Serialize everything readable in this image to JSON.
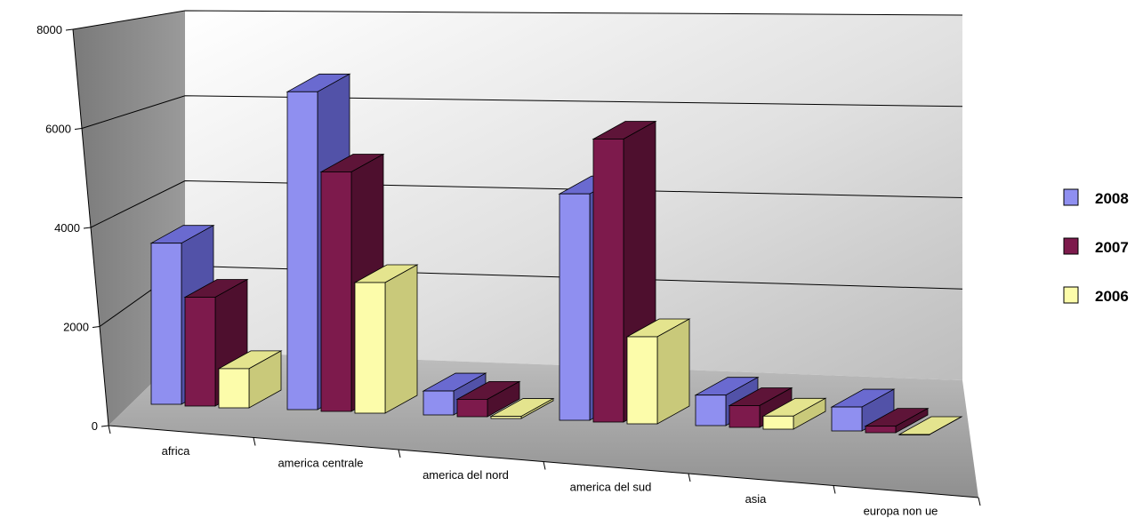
{
  "chart_data": {
    "type": "bar",
    "title": "",
    "xlabel": "",
    "ylabel": "",
    "ylim": [
      0,
      8000
    ],
    "yticks": [
      0,
      2000,
      4000,
      6000,
      8000
    ],
    "categories": [
      "africa",
      "america centrale",
      "america del nord",
      "america del sud",
      "asia",
      "europa non ue"
    ],
    "series": [
      {
        "name": "2008",
        "values": [
          3700,
          7300,
          550,
          5200,
          700,
          550
        ]
      },
      {
        "name": "2007",
        "values": [
          2500,
          5500,
          400,
          6500,
          500,
          150
        ]
      },
      {
        "name": "2006",
        "values": [
          900,
          3000,
          50,
          2000,
          300,
          0
        ]
      }
    ],
    "legend_position": "right",
    "grid": true,
    "colors": {
      "series": [
        "#8f8ff0",
        "#7d1a4c",
        "#fcfcaa"
      ],
      "series_side": [
        "#5252a8",
        "#4e0f2e",
        "#c9c97a"
      ],
      "series_top": [
        "#6a6ad0",
        "#5e1438",
        "#e4e48e"
      ],
      "back_wall": "#d8d8d8",
      "side_wall": "#8a8a8a",
      "floor": "#a9a9a9"
    }
  }
}
